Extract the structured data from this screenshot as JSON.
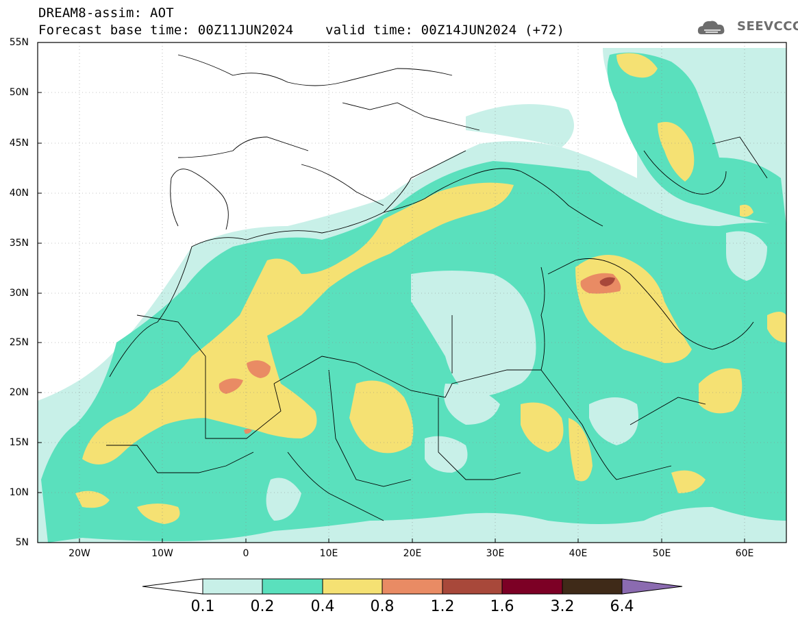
{
  "header": {
    "title_line1": "DREAM8-assim: AOT",
    "title_line2": "Forecast base time: 00Z11JUN2024    valid time: 00Z14JUN2024 (+72)"
  },
  "logo": {
    "text": "SEEVCCC",
    "icon": "cloud-icon",
    "color": "#6d6d6d"
  },
  "map": {
    "lat_labels": [
      "55N",
      "50N",
      "45N",
      "40N",
      "35N",
      "30N",
      "25N",
      "20N",
      "15N",
      "10N",
      "5N"
    ],
    "lon_labels": [
      "20W",
      "10W",
      "0",
      "10E",
      "20E",
      "30E",
      "40E",
      "50E",
      "60E"
    ],
    "lat_range": [
      5,
      55
    ],
    "lon_range": [
      -25,
      65
    ],
    "grid": "dotted"
  },
  "colorbar": {
    "labels": [
      "0.1",
      "0.2",
      "0.4",
      "0.8",
      "1.2",
      "1.6",
      "3.2",
      "6.4"
    ],
    "colors": [
      "#ffffff",
      "#c8f0e8",
      "#5ae0bd",
      "#f5e173",
      "#e98b64",
      "#a8483a",
      "#7c0025",
      "#3f2a18",
      "#8b6bb0"
    ]
  }
}
